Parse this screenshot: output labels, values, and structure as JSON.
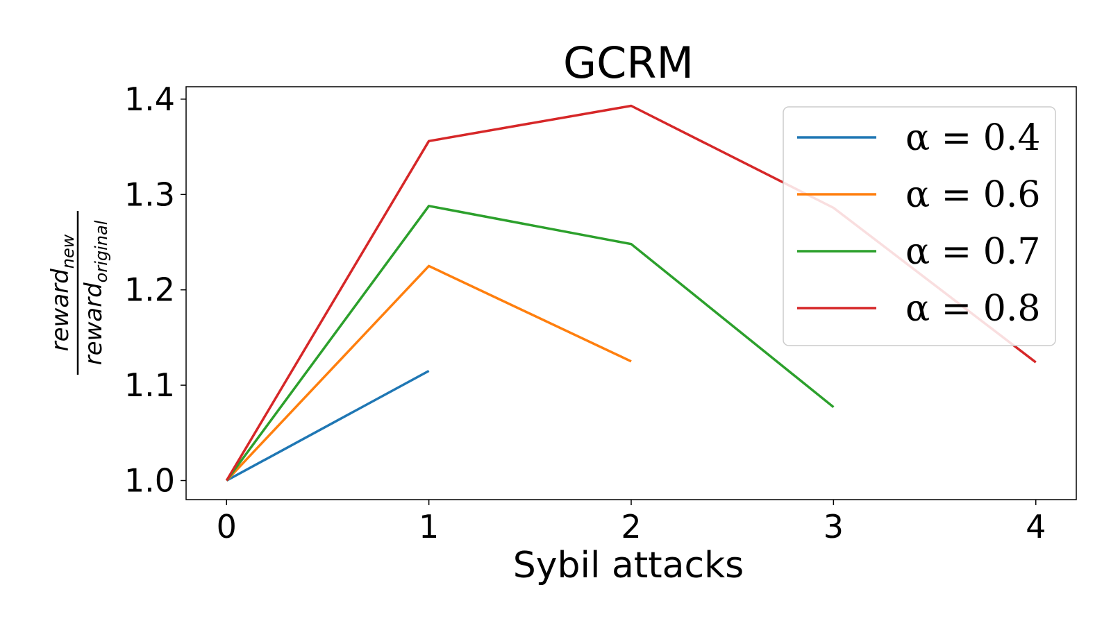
{
  "chart_data": {
    "type": "line",
    "title": "GCRM",
    "xlabel": "Sybil attacks",
    "ylabel": {
      "numerator": "reward",
      "numerator_sub": "new",
      "denominator": "reward",
      "denominator_sub": "original"
    },
    "xlim": [
      -0.2,
      4.2
    ],
    "ylim": [
      0.98,
      1.413
    ],
    "xticks": [
      0,
      1,
      2,
      3,
      4
    ],
    "xtick_labels": [
      "0",
      "1",
      "2",
      "3",
      "4"
    ],
    "yticks": [
      1.0,
      1.1,
      1.2,
      1.3,
      1.4
    ],
    "ytick_labels": [
      "1.0",
      "1.1",
      "1.2",
      "1.3",
      "1.4"
    ],
    "grid": false,
    "legend_position": "top-right",
    "series": [
      {
        "name": "α = 0.4",
        "color": "#1f77b4",
        "x": [
          0,
          1
        ],
        "values": [
          1.0,
          1.115
        ]
      },
      {
        "name": "α = 0.6",
        "color": "#ff7f0e",
        "x": [
          0,
          1,
          2
        ],
        "values": [
          1.0,
          1.225,
          1.125
        ]
      },
      {
        "name": "α = 0.7",
        "color": "#2ca02c",
        "x": [
          0,
          1,
          2,
          3
        ],
        "values": [
          1.0,
          1.288,
          1.248,
          1.077
        ]
      },
      {
        "name": "α = 0.8",
        "color": "#d62728",
        "x": [
          0,
          1,
          2,
          3,
          4
        ],
        "values": [
          1.0,
          1.356,
          1.393,
          1.286,
          1.124
        ]
      }
    ]
  }
}
